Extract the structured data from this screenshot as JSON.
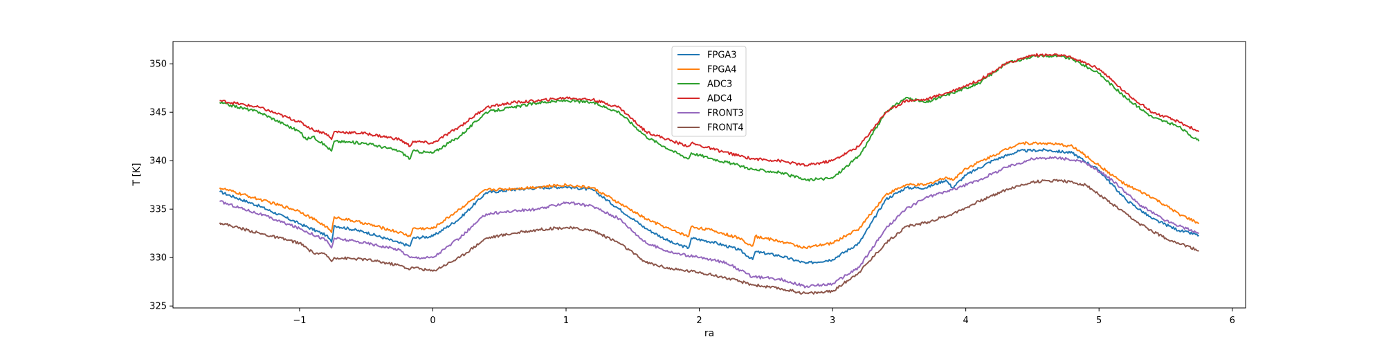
{
  "chart_data": {
    "type": "line",
    "title": "",
    "xlabel": "ra",
    "ylabel": "T [K]",
    "xlim": [
      -1.95,
      6.1
    ],
    "ylim": [
      324.8,
      352.3
    ],
    "xticks": [
      -1,
      0,
      1,
      2,
      3,
      4,
      5,
      6
    ],
    "xtick_labels": [
      "−1",
      "0",
      "1",
      "2",
      "3",
      "4",
      "5",
      "6"
    ],
    "yticks": [
      325,
      330,
      335,
      340,
      345,
      350
    ],
    "ytick_labels": [
      "325",
      "330",
      "335",
      "340",
      "345",
      "350"
    ],
    "grid": false,
    "legend_position": "upper-center",
    "series": [
      {
        "name": "FPGA3",
        "color": "#1f77b4",
        "x": [
          -1.6,
          -1.3,
          -1.0,
          -0.8,
          -0.76,
          -0.74,
          -0.5,
          -0.25,
          -0.17,
          -0.15,
          0.0,
          0.2,
          0.4,
          0.6,
          0.8,
          1.0,
          1.2,
          1.4,
          1.6,
          1.8,
          1.92,
          1.94,
          2.1,
          2.3,
          2.4,
          2.42,
          2.6,
          2.8,
          3.0,
          3.2,
          3.4,
          3.55,
          3.7,
          3.85,
          3.9,
          4.0,
          4.2,
          4.4,
          4.6,
          4.8,
          5.0,
          5.2,
          5.4,
          5.6,
          5.75
        ],
        "values": [
          336.8,
          335.3,
          333.5,
          332.3,
          331.6,
          333.3,
          332.6,
          331.5,
          331.2,
          332.0,
          332.2,
          334.0,
          336.7,
          337.0,
          337.2,
          337.3,
          337.0,
          335.0,
          333.0,
          331.5,
          331.0,
          332.0,
          331.6,
          330.8,
          329.8,
          330.6,
          330.2,
          329.4,
          329.8,
          331.5,
          336.0,
          337.2,
          337.2,
          338.0,
          337.2,
          338.5,
          340.0,
          341.0,
          341.1,
          340.8,
          339.0,
          336.0,
          334.0,
          332.8,
          332.3
        ]
      },
      {
        "name": "FPGA4",
        "color": "#ff7f0e",
        "x": [
          -1.6,
          -1.3,
          -1.0,
          -0.8,
          -0.76,
          -0.74,
          -0.5,
          -0.25,
          -0.17,
          -0.15,
          0.0,
          0.2,
          0.4,
          0.6,
          0.8,
          1.0,
          1.2,
          1.4,
          1.6,
          1.8,
          1.92,
          1.94,
          2.1,
          2.3,
          2.4,
          2.42,
          2.6,
          2.8,
          3.0,
          3.2,
          3.4,
          3.55,
          3.7,
          3.85,
          3.9,
          4.0,
          4.2,
          4.4,
          4.6,
          4.8,
          5.0,
          5.2,
          5.4,
          5.6,
          5.75
        ],
        "values": [
          337.2,
          336.0,
          334.8,
          333.2,
          332.6,
          334.2,
          333.5,
          332.6,
          332.2,
          333.0,
          333.0,
          335.0,
          337.0,
          337.1,
          337.3,
          337.5,
          337.2,
          335.6,
          334.0,
          332.8,
          332.2,
          333.2,
          332.8,
          332.0,
          331.2,
          332.2,
          331.7,
          331.0,
          331.5,
          333.0,
          336.5,
          337.5,
          337.5,
          338.3,
          338.0,
          339.2,
          340.5,
          341.8,
          341.8,
          341.5,
          339.5,
          337.5,
          336.2,
          334.5,
          333.5
        ]
      },
      {
        "name": "ADC3",
        "color": "#2ca02c",
        "x": [
          -1.6,
          -1.3,
          -1.0,
          -0.95,
          -0.9,
          -0.8,
          -0.76,
          -0.74,
          -0.5,
          -0.25,
          -0.17,
          -0.15,
          0.0,
          0.2,
          0.4,
          0.6,
          0.8,
          1.0,
          1.2,
          1.4,
          1.6,
          1.8,
          1.92,
          1.94,
          2.1,
          2.3,
          2.4,
          2.6,
          2.8,
          3.0,
          3.2,
          3.4,
          3.55,
          3.7,
          3.9,
          4.1,
          4.3,
          4.5,
          4.7,
          4.8,
          5.0,
          5.2,
          5.4,
          5.6,
          5.75
        ],
        "values": [
          346.0,
          345.0,
          343.0,
          342.2,
          342.5,
          341.5,
          341.0,
          342.0,
          341.8,
          341.0,
          340.2,
          341.0,
          340.8,
          342.5,
          345.0,
          345.5,
          346.0,
          346.2,
          346.0,
          345.0,
          342.5,
          341.0,
          340.2,
          340.8,
          340.2,
          339.5,
          339.1,
          338.8,
          338.0,
          338.2,
          340.5,
          345.0,
          346.5,
          346.0,
          347.0,
          348.0,
          350.0,
          350.8,
          350.8,
          350.5,
          349.0,
          346.5,
          344.5,
          343.5,
          342.0
        ]
      },
      {
        "name": "ADC4",
        "color": "#d62728",
        "x": [
          -1.6,
          -1.3,
          -1.0,
          -0.9,
          -0.8,
          -0.76,
          -0.74,
          -0.5,
          -0.25,
          -0.17,
          -0.15,
          0.0,
          0.2,
          0.4,
          0.6,
          0.8,
          1.0,
          1.2,
          1.4,
          1.6,
          1.8,
          1.92,
          1.94,
          2.1,
          2.3,
          2.4,
          2.6,
          2.8,
          3.0,
          3.2,
          3.4,
          3.55,
          3.7,
          3.9,
          4.1,
          4.3,
          4.5,
          4.7,
          4.8,
          5.0,
          5.2,
          5.4,
          5.6,
          5.75
        ],
        "values": [
          346.2,
          345.5,
          344.0,
          343.2,
          342.8,
          342.2,
          343.0,
          342.8,
          342.2,
          341.5,
          342.0,
          341.8,
          343.5,
          345.5,
          346.0,
          346.2,
          346.5,
          346.3,
          345.5,
          343.0,
          342.0,
          341.5,
          341.8,
          341.2,
          340.5,
          340.2,
          340.0,
          339.5,
          340.0,
          341.5,
          345.0,
          346.2,
          346.3,
          347.2,
          348.3,
          350.0,
          350.9,
          350.9,
          350.6,
          349.5,
          347.0,
          345.0,
          344.0,
          343.0
        ]
      },
      {
        "name": "FRONT3",
        "color": "#9467bd",
        "x": [
          -1.6,
          -1.3,
          -1.0,
          -0.8,
          -0.76,
          -0.74,
          -0.5,
          -0.25,
          -0.17,
          -0.15,
          0.0,
          0.2,
          0.4,
          0.6,
          0.8,
          1.0,
          1.2,
          1.4,
          1.6,
          1.8,
          2.0,
          2.2,
          2.4,
          2.6,
          2.8,
          3.0,
          3.2,
          3.4,
          3.55,
          3.7,
          3.9,
          4.1,
          4.3,
          4.5,
          4.7,
          4.9,
          5.1,
          5.3,
          5.5,
          5.75
        ],
        "values": [
          335.8,
          334.5,
          333.0,
          331.8,
          331.0,
          332.0,
          331.5,
          330.8,
          330.0,
          330.0,
          330.0,
          332.0,
          334.5,
          334.8,
          335.0,
          335.7,
          335.3,
          334.0,
          331.5,
          330.5,
          330.0,
          329.5,
          328.0,
          327.8,
          327.0,
          327.3,
          329.0,
          333.0,
          335.0,
          336.2,
          337.0,
          338.0,
          339.3,
          340.2,
          340.3,
          339.8,
          338.0,
          335.5,
          333.8,
          332.5
        ]
      },
      {
        "name": "FRONT4",
        "color": "#8c564b",
        "x": [
          -1.6,
          -1.3,
          -1.0,
          -0.9,
          -0.8,
          -0.76,
          -0.74,
          -0.5,
          -0.25,
          -0.17,
          -0.15,
          0.0,
          0.2,
          0.4,
          0.6,
          0.8,
          1.0,
          1.2,
          1.4,
          1.6,
          1.8,
          2.0,
          2.2,
          2.4,
          2.6,
          2.8,
          3.0,
          3.2,
          3.4,
          3.55,
          3.7,
          3.9,
          4.1,
          4.3,
          4.5,
          4.7,
          4.9,
          5.1,
          5.3,
          5.5,
          5.75
        ],
        "values": [
          333.6,
          332.5,
          331.5,
          330.5,
          330.3,
          329.6,
          330.0,
          329.8,
          329.2,
          328.8,
          329.0,
          328.6,
          330.0,
          332.0,
          332.5,
          332.9,
          333.1,
          332.8,
          331.5,
          329.5,
          328.8,
          328.5,
          327.9,
          327.2,
          326.8,
          326.3,
          326.5,
          328.5,
          331.5,
          333.2,
          333.6,
          334.5,
          335.8,
          337.0,
          337.8,
          338.0,
          337.5,
          335.5,
          333.5,
          332.0,
          330.7
        ]
      }
    ]
  }
}
